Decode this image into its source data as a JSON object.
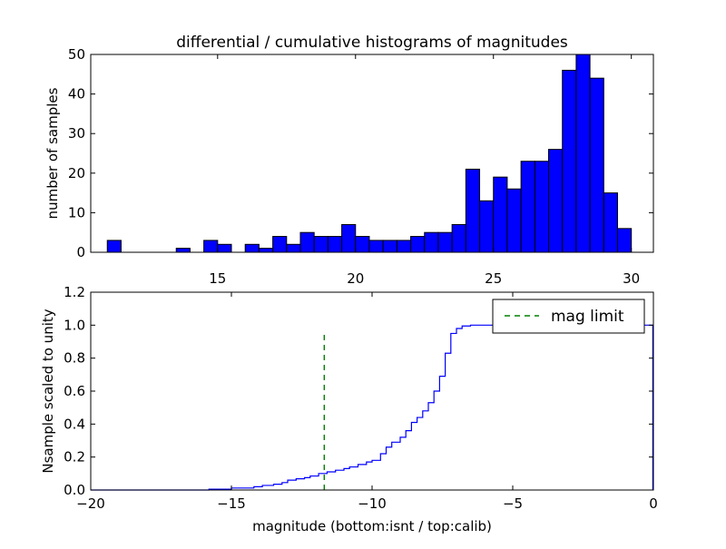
{
  "chart_data": [
    {
      "type": "bar",
      "subtype": "histogram",
      "title": "differential / cumulative histograms of magnitudes",
      "ylabel": "number of samples",
      "xlabel": "",
      "xlim": [
        10.4,
        30.8
      ],
      "ylim": [
        0,
        50
      ],
      "xticks": [
        15,
        20,
        25,
        30
      ],
      "yticks": [
        0,
        10,
        20,
        30,
        40,
        50
      ],
      "xticks_position": "bottom",
      "bar_color": "#0000ff",
      "edge_color": "#000000",
      "bin_width": 0.5,
      "bins": [
        {
          "x": 11.0,
          "value": 3
        },
        {
          "x": 11.5,
          "value": 0
        },
        {
          "x": 12.0,
          "value": 0
        },
        {
          "x": 12.5,
          "value": 0
        },
        {
          "x": 13.0,
          "value": 0
        },
        {
          "x": 13.5,
          "value": 1
        },
        {
          "x": 14.0,
          "value": 0
        },
        {
          "x": 14.5,
          "value": 3
        },
        {
          "x": 15.0,
          "value": 2
        },
        {
          "x": 15.5,
          "value": 0
        },
        {
          "x": 16.0,
          "value": 2
        },
        {
          "x": 16.5,
          "value": 1
        },
        {
          "x": 17.0,
          "value": 4
        },
        {
          "x": 17.5,
          "value": 2
        },
        {
          "x": 18.0,
          "value": 5
        },
        {
          "x": 18.5,
          "value": 4
        },
        {
          "x": 19.0,
          "value": 4
        },
        {
          "x": 19.5,
          "value": 7
        },
        {
          "x": 20.0,
          "value": 4
        },
        {
          "x": 20.5,
          "value": 3
        },
        {
          "x": 21.0,
          "value": 3
        },
        {
          "x": 21.5,
          "value": 3
        },
        {
          "x": 22.0,
          "value": 4
        },
        {
          "x": 22.5,
          "value": 5
        },
        {
          "x": 23.0,
          "value": 5
        },
        {
          "x": 23.5,
          "value": 7
        },
        {
          "x": 24.0,
          "value": 21
        },
        {
          "x": 24.5,
          "value": 13
        },
        {
          "x": 25.0,
          "value": 19
        },
        {
          "x": 25.5,
          "value": 16
        },
        {
          "x": 26.0,
          "value": 23
        },
        {
          "x": 26.5,
          "value": 23
        },
        {
          "x": 27.0,
          "value": 26
        },
        {
          "x": 27.5,
          "value": 46
        },
        {
          "x": 28.0,
          "value": 50
        },
        {
          "x": 28.5,
          "value": 44
        },
        {
          "x": 29.0,
          "value": 15
        },
        {
          "x": 29.5,
          "value": 6
        }
      ]
    },
    {
      "type": "line",
      "subtype": "cumulative-step",
      "xlabel": "magnitude (bottom:isnt / top:calib)",
      "ylabel": "Nsample scaled to unity",
      "xlim": [
        -20,
        0
      ],
      "ylim": [
        0,
        1.2
      ],
      "xticks": [
        -20,
        -15,
        -10,
        -5,
        0
      ],
      "yticks": [
        0.0,
        0.2,
        0.4,
        0.6,
        0.8,
        1.0,
        1.2
      ],
      "legend_position": "top-right",
      "series": [
        {
          "color": "#0000ff",
          "style": "step",
          "x": [
            -20,
            -15.8,
            -15.0,
            -14.2,
            -13.9,
            -13.5,
            -13.2,
            -13.0,
            -12.7,
            -12.4,
            -12.2,
            -11.9,
            -11.6,
            -11.3,
            -11.0,
            -10.8,
            -10.5,
            -10.2,
            -10.0,
            -9.7,
            -9.5,
            -9.3,
            -9.0,
            -8.8,
            -8.6,
            -8.4,
            -8.2,
            -8.0,
            -7.8,
            -7.6,
            -7.4,
            -7.2,
            -7.0,
            -6.8,
            -6.5,
            -0.1,
            -0.02
          ],
          "y": [
            0.0,
            0.005,
            0.012,
            0.02,
            0.028,
            0.035,
            0.045,
            0.06,
            0.068,
            0.075,
            0.085,
            0.1,
            0.11,
            0.12,
            0.13,
            0.14,
            0.155,
            0.17,
            0.18,
            0.22,
            0.26,
            0.29,
            0.32,
            0.36,
            0.41,
            0.44,
            0.48,
            0.53,
            0.6,
            0.69,
            0.83,
            0.95,
            0.98,
            0.995,
            1.0,
            1.0,
            0.0
          ]
        },
        {
          "name": "mag limit",
          "color": "#008000",
          "style": "dashed",
          "x": [
            -11.7,
            -11.7
          ],
          "y": [
            0.0,
            0.96
          ]
        }
      ]
    }
  ]
}
